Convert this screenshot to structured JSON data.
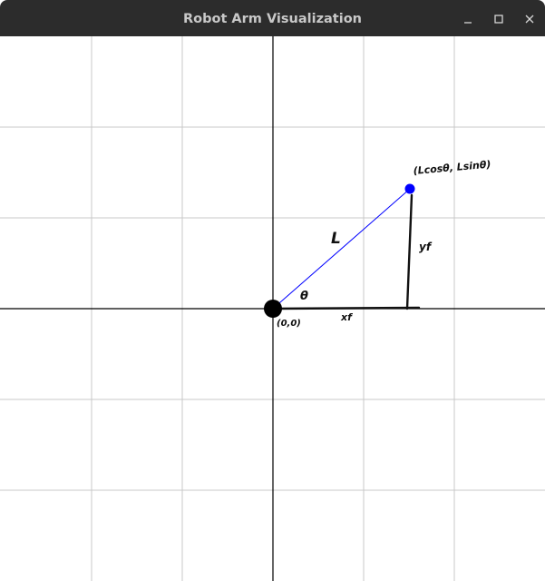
{
  "window": {
    "title": "Robot Arm Visualization",
    "buttons": {
      "minimize": "minimize-icon",
      "maximize": "maximize-icon",
      "close": "close-icon"
    }
  },
  "plot": {
    "grid_on": true,
    "colors": {
      "background": "#ffffff",
      "grid": "#c8c8c8",
      "axes": "#000000",
      "arm": "#0000ff",
      "endpoint": "#0000ff",
      "base_joint": "#000000",
      "annotation": "#111111"
    },
    "labels": {
      "endpoint": "(Lcosθ, Lsinθ)",
      "length": "L",
      "angle": "θ",
      "origin": "(0,0)",
      "x_projection": "xf",
      "y_projection": "yf"
    }
  }
}
